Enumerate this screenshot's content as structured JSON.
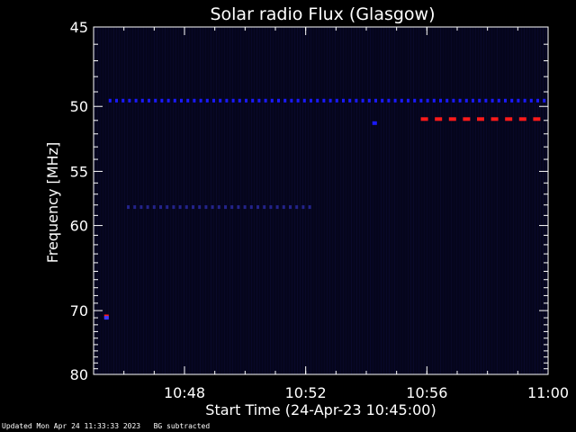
{
  "chart_data": {
    "type": "heatmap",
    "title": "Solar radio Flux (Glasgow)",
    "xlabel": "Start Time (24-Apr-23 10:45:00)",
    "ylabel": "Frequency [MHz]",
    "x_ticks": [
      "10:48",
      "10:52",
      "10:56",
      "11:00"
    ],
    "x_tick_minutes": [
      3,
      7,
      11,
      15
    ],
    "xlim_minutes": [
      0,
      15
    ],
    "y_ticks": [
      45,
      50,
      55,
      60,
      70,
      80
    ],
    "ylim": [
      45,
      80
    ],
    "y_scale": "reciprocal",
    "background_color": "#05051c",
    "features": [
      {
        "name": "band-50mhz",
        "freq": 49.6,
        "t_start": 0.5,
        "t_end": 15,
        "color": "#1a1aff",
        "dashed": true
      },
      {
        "name": "band-58mhz",
        "freq": 58.2,
        "t_start": 1.1,
        "t_end": 7.3,
        "color": "#23238a",
        "dashed": true
      },
      {
        "name": "burst-51mhz",
        "freq": 50.9,
        "t_start": 10.8,
        "t_end": 15,
        "color": "#ff1a1a",
        "dashed": true
      },
      {
        "name": "spot-51mhz",
        "freq": 51.2,
        "t_start": 9.2,
        "t_end": 9.35,
        "color": "#1a1aff",
        "dashed": false
      },
      {
        "name": "spot-71mhz-red",
        "freq": 70.8,
        "t_start": 0.35,
        "t_end": 0.5,
        "color": "#ff1a1a",
        "dashed": false
      },
      {
        "name": "spot-71mhz-blue",
        "freq": 71.0,
        "t_start": 0.35,
        "t_end": 0.5,
        "color": "#3a3aff",
        "dashed": false
      }
    ]
  },
  "footer": {
    "updated": "Updated Mon Apr 24 11:33:33 2023",
    "bg_note": "BG subtracted"
  }
}
